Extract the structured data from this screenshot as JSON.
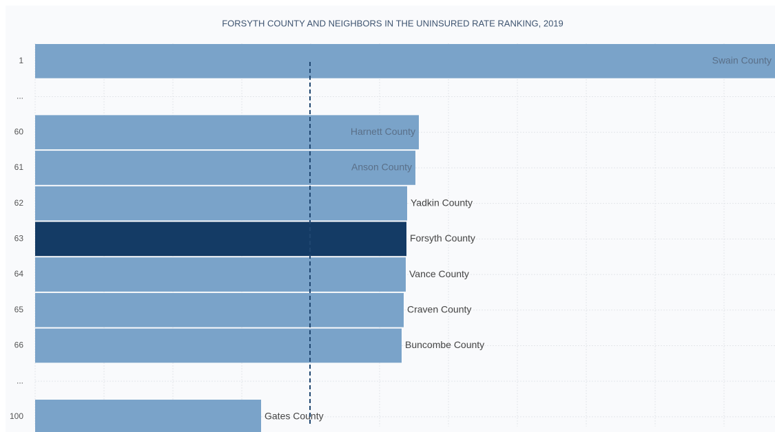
{
  "chart_data": {
    "type": "hbar",
    "title": "FORSYTH COUNTY AND NEIGHBORS IN THE UNINSURED RATE RANKING, 2019",
    "categories": [
      "1",
      "...",
      "60",
      "61",
      "62",
      "63",
      "64",
      "65",
      "66",
      "...",
      "100"
    ],
    "bar_labels": [
      "Swain County",
      null,
      "Harnett County",
      "Anson County",
      "Yadkin County",
      "Forsyth County",
      "Vance County",
      "Craven County",
      "Buncombe County",
      null,
      "Gates County"
    ],
    "values": [
      21.48,
      null,
      11.14,
      11.04,
      10.8,
      10.78,
      10.76,
      10.7,
      10.64,
      null,
      6.56
    ],
    "colors": [
      "#7aa3c9",
      null,
      "#7aa3c9",
      "#7aa3c9",
      "#7aa3c9",
      "#143b65",
      "#7aa3c9",
      "#7aa3c9",
      "#7aa3c9",
      null,
      "#7aa3c9"
    ],
    "reference_line": 7.98,
    "reference_color": "#1f4670",
    "xlim": [
      0,
      21.48
    ],
    "xticks": [
      0,
      2,
      4,
      6,
      8,
      10,
      12,
      14,
      16,
      18,
      20
    ],
    "grid": true
  }
}
